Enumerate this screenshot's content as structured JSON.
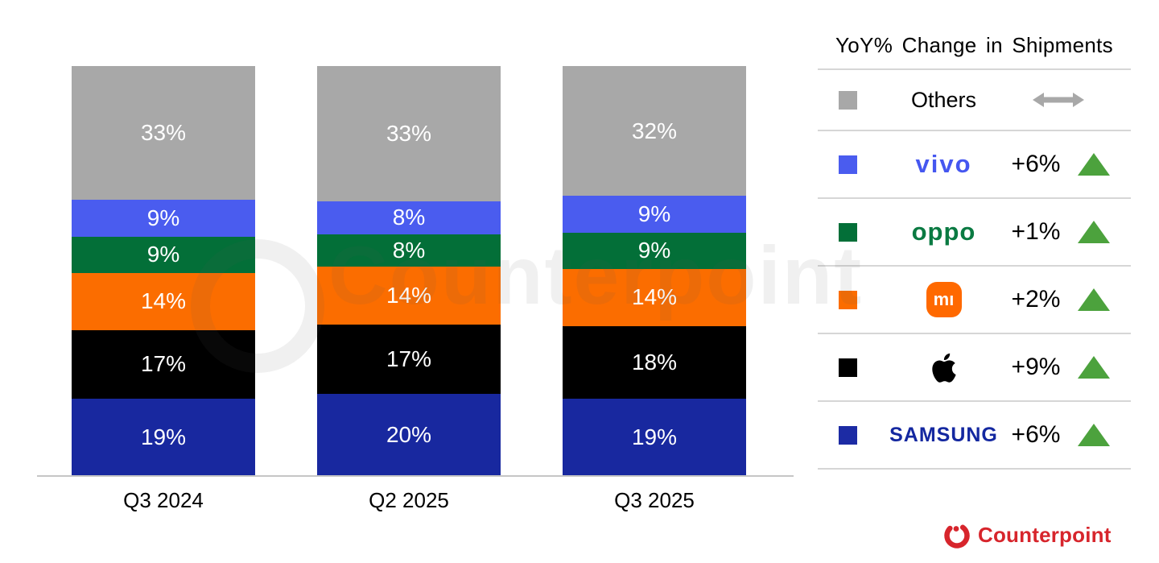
{
  "chart_data": {
    "type": "bar",
    "stacked": true,
    "unit": "percent share of shipments",
    "categories": [
      "Q3 2024",
      "Q2 2025",
      "Q3 2025"
    ],
    "series": [
      {
        "name": "Samsung",
        "color": "#18289F",
        "values": [
          19,
          20,
          19
        ],
        "labels": [
          "19%",
          "20%",
          "19%"
        ]
      },
      {
        "name": "Apple",
        "color": "#000000",
        "values": [
          17,
          17,
          18
        ],
        "labels": [
          "17%",
          "17%",
          "18%"
        ]
      },
      {
        "name": "Xiaomi",
        "color": "#FB6D00",
        "values": [
          14,
          14,
          14
        ],
        "labels": [
          "14%",
          "14%",
          "14%"
        ]
      },
      {
        "name": "OPPO",
        "color": "#036F38",
        "values": [
          9,
          8,
          9
        ],
        "labels": [
          "9%",
          "8%",
          "9%"
        ]
      },
      {
        "name": "vivo",
        "color": "#4A5CEF",
        "values": [
          9,
          8,
          9
        ],
        "labels": [
          "9%",
          "8%",
          "9%"
        ]
      },
      {
        "name": "Others",
        "color": "#A8A8A8",
        "values": [
          33,
          33,
          32
        ],
        "labels": [
          "33%",
          "33%",
          "32%"
        ]
      }
    ],
    "ylim": [
      0,
      100
    ],
    "grid": false,
    "legend_position": "right"
  },
  "legend": {
    "title": "YoY% Change in Shipments",
    "trend_up_color": "#4CA23D",
    "flat_arrow_color": "#A8A8A8",
    "rows": [
      {
        "name": "Others",
        "swatch": "#A8A8A8",
        "logo_text": "Others",
        "change": "",
        "trend": "flat"
      },
      {
        "name": "vivo",
        "swatch": "#4A5CEF",
        "logo_text": "vivo",
        "change": "+6%",
        "trend": "up"
      },
      {
        "name": "OPPO",
        "swatch": "#036F38",
        "logo_text": "oppo",
        "change": "+1%",
        "trend": "up"
      },
      {
        "name": "Xiaomi",
        "swatch": "#FB6D00",
        "logo_text": "mı",
        "change": "+2%",
        "trend": "up"
      },
      {
        "name": "Apple",
        "swatch": "#000000",
        "logo_text": "",
        "change": "+9%",
        "trend": "up"
      },
      {
        "name": "Samsung",
        "swatch": "#1C2BA4",
        "logo_text": "SAMSUNG",
        "change": "+6%",
        "trend": "up"
      }
    ]
  },
  "watermark": {
    "text": "Counterpoint"
  },
  "footer": {
    "logo_text": "Counterpoint",
    "brand_color": "#D7252C"
  }
}
